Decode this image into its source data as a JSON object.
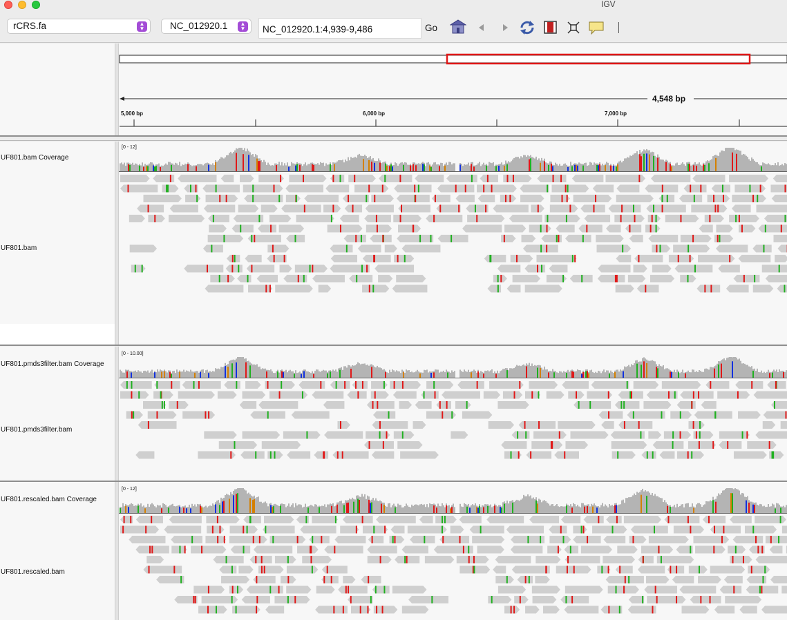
{
  "window": {
    "title": "IGV"
  },
  "toolbar": {
    "genome": "rCRS.fa",
    "chromosome": "NC_012920.1",
    "locus": "NC_012920.1:4,939-9,486",
    "go_label": "Go"
  },
  "ruler": {
    "span_label": "4,548 bp",
    "ticks": [
      {
        "label": "5,000 bp"
      },
      {
        "label": "6,000 bp"
      },
      {
        "label": "7,000 bp"
      }
    ]
  },
  "tracks": [
    {
      "coverage_label": "UF801.bam Coverage",
      "alignment_label": "UF801.bam",
      "scale": "[0 - 12]"
    },
    {
      "coverage_label": "UF801.pmds3filter.bam Coverage",
      "alignment_label": "UF801.pmds3filter.bam",
      "scale": "[0 - 10.00]"
    },
    {
      "coverage_label": "UF801.rescaled.bam Coverage",
      "alignment_label": "UF801.rescaled.bam",
      "scale": "[0 - 12]"
    }
  ],
  "colors": {
    "read": "#cfcfcf",
    "coverage": "#b4b4b4",
    "mismatch_a": "#20b020",
    "mismatch_c": "#1030e0",
    "mismatch_g": "#d48000",
    "mismatch_t": "#e01818",
    "region_box": "#e01818"
  }
}
